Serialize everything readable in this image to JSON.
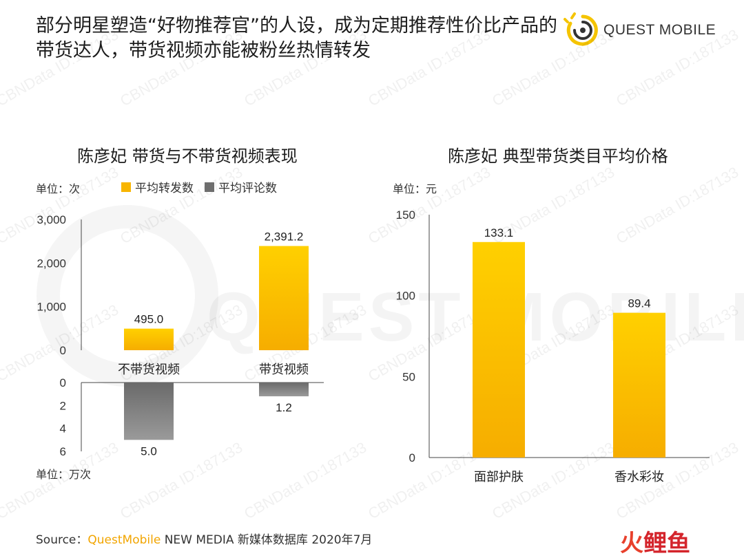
{
  "headline": "部分明星塑造“好物推荐官”的人设，成为定期推荐性价比产品的带货达人，带货视频亦能被粉丝热情转发",
  "logo": {
    "text": "QUEST MOBILE",
    "icon": "questmobile-logo-icon",
    "accent": "#f5c400"
  },
  "watermark": {
    "text": "CBNData ID:187133",
    "bg_text": "QUEST MOBILE"
  },
  "colors": {
    "primary_bar": "#f8b500",
    "primary_bar_light": "#ffd000",
    "secondary_bar": "#8a8a8a",
    "brand": "#f2a500"
  },
  "left_chart": {
    "title": "陈彦妃 带货与不带货视频表现",
    "unit_top": "单位：次",
    "unit_bottom": "单位：万次",
    "legend": [
      {
        "label": "平均转发数",
        "color": "#f8b500"
      },
      {
        "label": "平均评论数",
        "color": "#7a7a7a"
      }
    ]
  },
  "right_chart": {
    "title": "陈彦妃 典型带货类目平均价格",
    "unit": "单位：元"
  },
  "chart_data": [
    {
      "type": "bar",
      "title": "陈彦妃 带货与不带货视频表现",
      "ylabel": "单位：次",
      "categories": [
        "不带货视频",
        "带货视频"
      ],
      "series": [
        {
          "name": "平均转发数",
          "values": [
            495.0,
            2391.2
          ],
          "value_labels": [
            "495.0",
            "2,391.2"
          ]
        }
      ],
      "ylim": [
        0,
        3000
      ],
      "yticks": [
        "0",
        "1,000",
        "2,000",
        "3,000"
      ],
      "grid": false
    },
    {
      "type": "bar",
      "ylabel": "单位：万次",
      "categories": [
        "不带货视频",
        "带货视频"
      ],
      "series": [
        {
          "name": "平均评论数",
          "values": [
            5.0,
            1.2
          ],
          "value_labels": [
            "5.0",
            "1.2"
          ]
        }
      ],
      "ylim": [
        0,
        6
      ],
      "yticks": [
        "0",
        "2",
        "4",
        "6"
      ],
      "direction": "downward",
      "grid": false
    },
    {
      "type": "bar",
      "title": "陈彦妃 典型带货类目平均价格",
      "ylabel": "单位：元",
      "categories": [
        "面部护肤",
        "香水彩妆"
      ],
      "values": [
        133.1,
        89.4
      ],
      "value_labels": [
        "133.1",
        "89.4"
      ],
      "ylim": [
        0,
        150
      ],
      "yticks": [
        "0",
        "50",
        "100",
        "150"
      ],
      "grid": false
    }
  ],
  "source": {
    "prefix": "Source：",
    "brand": "QuestMobile",
    "rest": "NEW MEDIA 新媒体数据库 2020年7月"
  },
  "corner_brand": {
    "part1": "火",
    "part2": "鲤鱼"
  }
}
